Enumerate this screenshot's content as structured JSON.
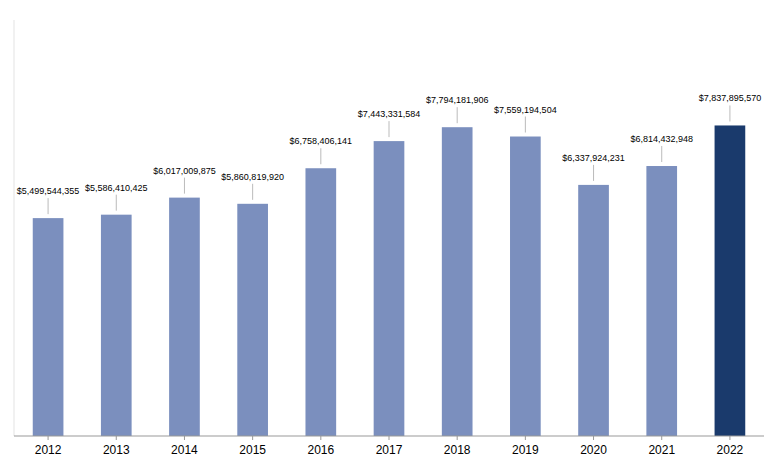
{
  "chart_data": {
    "type": "bar",
    "categories": [
      "2012",
      "2013",
      "2014",
      "2015",
      "2016",
      "2017",
      "2018",
      "2019",
      "2020",
      "2021",
      "2022"
    ],
    "values": [
      5499544355,
      5586410425,
      6017009875,
      5860819920,
      6758406141,
      7443331584,
      7794181906,
      7559194504,
      6337924231,
      6814432948,
      7837895570
    ],
    "value_labels": [
      "$5,499,544,355",
      "$5,586,410,425",
      "$6,017,009,875",
      "$5,860,819,920",
      "$6,758,406,141",
      "$7,443,331,584",
      "$7,794,181,906",
      "$7,559,194,504",
      "$6,337,924,231",
      "$6,814,432,948",
      "$7,837,895,570"
    ],
    "colors": [
      "#7b8fbe",
      "#7b8fbe",
      "#7b8fbe",
      "#7b8fbe",
      "#7b8fbe",
      "#7b8fbe",
      "#7b8fbe",
      "#7b8fbe",
      "#7b8fbe",
      "#7b8fbe",
      "#1a3a6c"
    ],
    "ylim": [
      0,
      10500000000
    ],
    "data_labels": true,
    "tick_labels": "x",
    "grid": false
  }
}
